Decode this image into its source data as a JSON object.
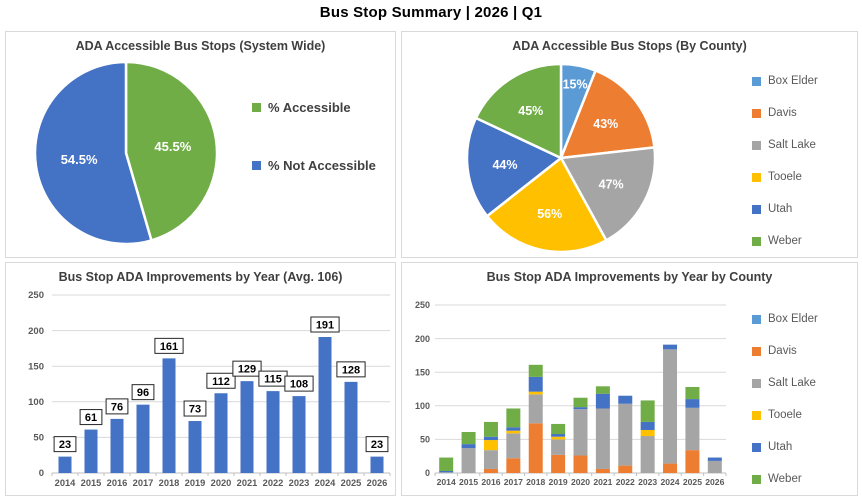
{
  "page": {
    "title": "Bus Stop Summary | 2026 | Q1"
  },
  "palette": {
    "blue": "#4472C4",
    "orange": "#ED7D31",
    "gray": "#A5A5A5",
    "gold": "#FFC000",
    "light_blue": "#5B9BD5",
    "green": "#70AD47",
    "title_text": "#3F3F3F",
    "axis_text": "#595959",
    "grid_line": "#D9D9D9",
    "axis_line": "#BFBFBF",
    "panel_border": "#D9D9D9",
    "data_label_text": "#000000",
    "pie_label_text": "#FFFFFF"
  },
  "chart_data": [
    {
      "type": "pie",
      "title": "ADA Accessible Bus Stops (System Wide)",
      "labels": [
        "% Accessible",
        "% Not Accessible"
      ],
      "values": [
        45.5,
        54.5
      ],
      "slice_labels": [
        "45.5%",
        "54.5%"
      ],
      "colors": [
        "#70AD47",
        "#4472C4"
      ],
      "legend_position": "right"
    },
    {
      "type": "pie",
      "title": "ADA Accessible Bus Stops (By County)",
      "labels": [
        "Box Elder",
        "Davis",
        "Salt Lake",
        "Tooele",
        "Utah",
        "Weber"
      ],
      "values": [
        15,
        43,
        47,
        56,
        44,
        45
      ],
      "slice_labels": [
        "15%",
        "43%",
        "47%",
        "56%",
        "44%",
        "45%"
      ],
      "colors": [
        "#5B9BD5",
        "#ED7D31",
        "#A5A5A5",
        "#FFC000",
        "#4472C4",
        "#70AD47"
      ],
      "legend_position": "right"
    },
    {
      "type": "bar",
      "title": "Bus Stop ADA Improvements by Year (Avg. 106)",
      "categories": [
        "2014",
        "2015",
        "2016",
        "2017",
        "2018",
        "2019",
        "2020",
        "2021",
        "2022",
        "2023",
        "2024",
        "2025",
        "2026"
      ],
      "values": [
        23,
        61,
        76,
        96,
        161,
        73,
        112,
        129,
        115,
        108,
        191,
        128,
        23
      ],
      "bar_color": "#4472C4",
      "data_labels": true,
      "xlabel": "",
      "ylabel": "",
      "ylim": [
        0,
        250
      ],
      "yticks": [
        0,
        50,
        100,
        150,
        200,
        250
      ],
      "grid": true
    },
    {
      "type": "stacked-bar",
      "title": "Bus Stop ADA Improvements by Year by County",
      "categories": [
        "2014",
        "2015",
        "2016",
        "2017",
        "2018",
        "2019",
        "2020",
        "2021",
        "2022",
        "2023",
        "2024",
        "2025",
        "2026"
      ],
      "series": [
        {
          "name": "Box Elder",
          "color": "#5B9BD5",
          "values": [
            0,
            0,
            0,
            0,
            0,
            0,
            0,
            0,
            0,
            0,
            0,
            0,
            0
          ]
        },
        {
          "name": "Davis",
          "color": "#ED7D31",
          "values": [
            0,
            0,
            6,
            22,
            74,
            27,
            26,
            6,
            11,
            0,
            14,
            34,
            0
          ]
        },
        {
          "name": "Salt Lake",
          "color": "#A5A5A5",
          "values": [
            1,
            37,
            28,
            37,
            43,
            23,
            69,
            90,
            92,
            55,
            170,
            63,
            18
          ]
        },
        {
          "name": "Tooele",
          "color": "#FFC000",
          "values": [
            0,
            0,
            15,
            4,
            4,
            4,
            0,
            0,
            0,
            9,
            0,
            0,
            0
          ]
        },
        {
          "name": "Utah",
          "color": "#4472C4",
          "values": [
            2,
            6,
            5,
            5,
            22,
            4,
            3,
            22,
            12,
            12,
            7,
            13,
            5
          ]
        },
        {
          "name": "Weber",
          "color": "#70AD47",
          "values": [
            20,
            18,
            22,
            28,
            18,
            15,
            14,
            11,
            0,
            32,
            0,
            18,
            0
          ]
        }
      ],
      "totals": [
        23,
        61,
        76,
        96,
        161,
        73,
        112,
        129,
        115,
        108,
        191,
        128,
        23
      ],
      "legend_position": "right",
      "xlabel": "",
      "ylabel": "",
      "ylim": [
        0,
        250
      ],
      "yticks": [
        0,
        50,
        100,
        150,
        200,
        250
      ],
      "grid": true
    }
  ]
}
